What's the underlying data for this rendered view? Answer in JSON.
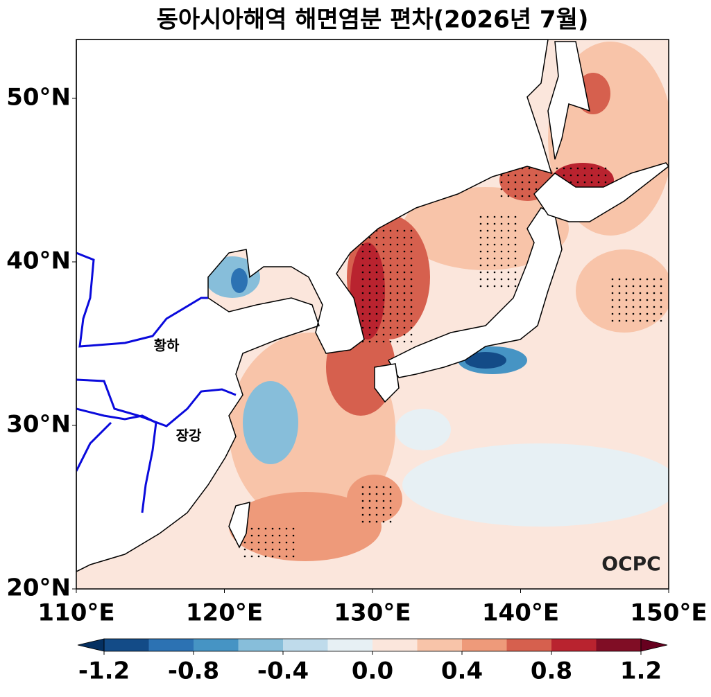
{
  "title": "동아시아해역 해면염분 편차(2026년 7월)",
  "map": {
    "lonlim": [
      110,
      150
    ],
    "latlim": [
      20,
      53.6
    ],
    "lon_ticks": [
      {
        "value": 110,
        "label": "110°E"
      },
      {
        "value": 120,
        "label": "120°E"
      },
      {
        "value": 130,
        "label": "130°E"
      },
      {
        "value": 140,
        "label": "140°E"
      },
      {
        "value": 150,
        "label": "150°E"
      }
    ],
    "lat_ticks": [
      {
        "value": 20,
        "label": "20°N"
      },
      {
        "value": 30,
        "label": "30°N"
      },
      {
        "value": 40,
        "label": "40°N"
      },
      {
        "value": 50,
        "label": "50°N"
      }
    ],
    "rivers": [
      {
        "label": "황하"
      },
      {
        "label": "장강"
      }
    ],
    "logo": "OCPC"
  },
  "colorbar": {
    "levels": [
      -1.2,
      -1.0,
      -0.8,
      -0.6,
      -0.4,
      -0.2,
      0.0,
      0.2,
      0.4,
      0.6,
      0.8,
      1.0,
      1.2
    ],
    "colors": [
      "#134b87",
      "#2c72b3",
      "#4694c4",
      "#87beda",
      "#bfdbeb",
      "#e7f0f4",
      "#fbe6dc",
      "#f8c4a9",
      "#ee9a7a",
      "#d6604e",
      "#b9232f",
      "#800d25"
    ],
    "under_color": "#053061",
    "over_color": "#67001f",
    "ticks": [
      -1.2,
      -0.8,
      -0.4,
      {
        "value": 0.0,
        "label": "0.0"
      },
      0.4,
      0.8,
      1.2
    ]
  }
}
